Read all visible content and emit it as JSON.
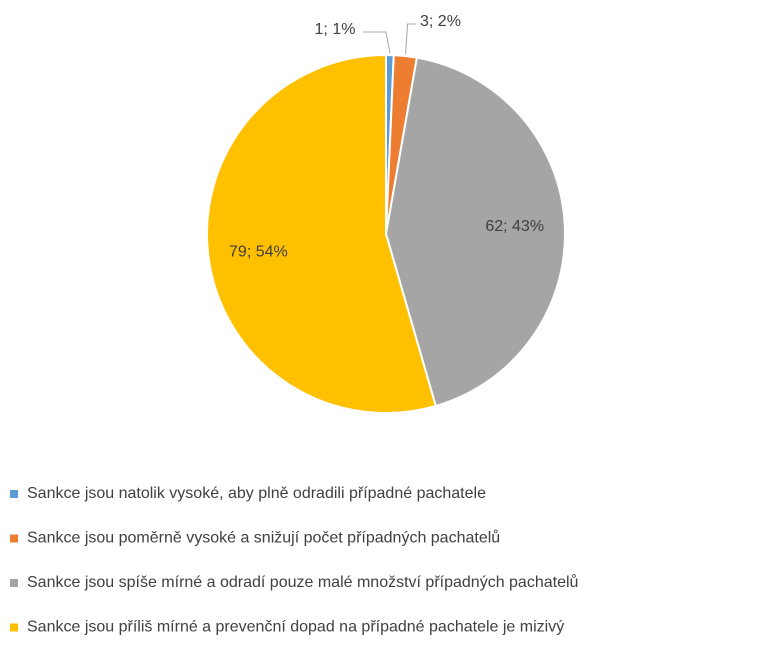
{
  "chart_data": {
    "type": "pie",
    "categories": [
      "Sankce jsou natolik vysoké, aby plně odradili případné pachatele",
      "Sankce jsou poměrně vysoké a snižují počet případných pachatelů",
      "Sankce jsou spíše mírné a odradí pouze malé množství případných pachatelů",
      "Sankce jsou příliš mírné a prevenční dopad na případné pachatele je mizivý"
    ],
    "values": [
      1,
      3,
      62,
      79
    ],
    "value_labels": [
      "1; 1%",
      "3; 2%",
      "62; 43%",
      "79; 54%"
    ],
    "colors": [
      "#5b9bd5",
      "#ed7d31",
      "#a5a5a5",
      "#ffc000"
    ],
    "legend": "bottom"
  }
}
